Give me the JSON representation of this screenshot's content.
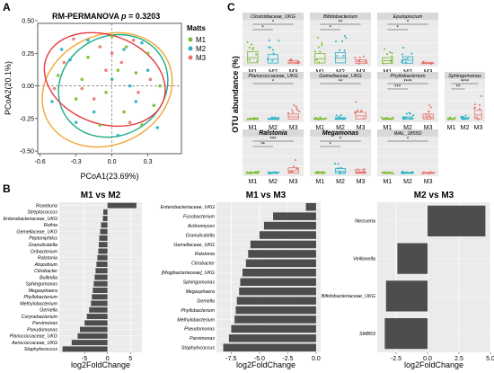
{
  "panel_labels": {
    "a": "A",
    "b": "B",
    "c": "C"
  },
  "colors": {
    "M1": "#7dbb2e",
    "M2": "#27b1c4",
    "M3": "#e8736b",
    "bar": "#4d4d4d",
    "panel_bg": "#ebebeb",
    "strip_bg": "#d9d9d9",
    "ell_M1": "#1aaa85",
    "ell_M2": "#f2a531",
    "ell_M3": "#e8383d"
  },
  "chart_data": [
    {
      "id": "A",
      "type": "scatter",
      "title": "RM-PERMANOVA p = 0.3203",
      "title_prefix": "RM-PERMANOVA ",
      "title_italic": "p",
      "title_suffix": " = 0.3203",
      "xlabel": "PCoA1(23.69%)",
      "ylabel": "PCoA2(20.1%)",
      "xlim": [
        -0.62,
        0.58
      ],
      "ylim": [
        -0.52,
        0.48
      ],
      "xticks": [
        -0.6,
        -0.3,
        0.0,
        0.3
      ],
      "xtick_labels": [
        "-0.6",
        "-0.3",
        "0.0",
        "0.3"
      ],
      "yticks": [
        0.5,
        0.25,
        0.0,
        -0.25,
        -0.5
      ],
      "ytick_labels": [
        "0.50",
        "0.25",
        "0.00",
        "-0.25",
        "-0.50"
      ],
      "legend_title": "Matts",
      "legend_position": "right",
      "series": [
        {
          "name": "M1",
          "points": [
            [
              -0.45,
              0.08
            ],
            [
              -0.3,
              -0.1
            ],
            [
              -0.2,
              0.22
            ],
            [
              -0.05,
              -0.05
            ],
            [
              0.05,
              0.12
            ],
            [
              0.1,
              -0.2
            ],
            [
              0.2,
              0.1
            ],
            [
              0.25,
              -0.3
            ],
            [
              0.3,
              0.25
            ],
            [
              0.4,
              0.0
            ],
            [
              0.12,
              0.3
            ],
            [
              -0.1,
              -0.3
            ],
            [
              0.35,
              -0.15
            ],
            [
              0.0,
              0.38
            ],
            [
              -0.25,
              0.05
            ]
          ]
        },
        {
          "name": "M2",
          "points": [
            [
              -0.5,
              -0.12
            ],
            [
              -0.35,
              0.2
            ],
            [
              -0.15,
              -0.2
            ],
            [
              0.0,
              0.05
            ],
            [
              0.1,
              0.28
            ],
            [
              0.2,
              -0.12
            ],
            [
              0.3,
              0.12
            ],
            [
              -0.42,
              0.28
            ],
            [
              0.38,
              -0.32
            ],
            [
              0.05,
              -0.38
            ],
            [
              -0.2,
              0.35
            ],
            [
              0.25,
              0.33
            ],
            [
              -0.3,
              -0.28
            ],
            [
              0.15,
              0.0
            ]
          ]
        },
        {
          "name": "M3",
          "points": [
            [
              -0.4,
              0.18
            ],
            [
              -0.25,
              -0.02
            ],
            [
              -0.1,
              0.3
            ],
            [
              0.08,
              0.18
            ],
            [
              0.22,
              -0.05
            ],
            [
              -0.32,
              0.36
            ],
            [
              -0.05,
              0.12
            ],
            [
              0.15,
              -0.28
            ],
            [
              0.32,
              0.05
            ],
            [
              -0.15,
              -0.1
            ],
            [
              0.0,
              0.25
            ],
            [
              0.18,
              0.35
            ],
            [
              -0.48,
              -0.02
            ]
          ]
        }
      ],
      "ellipses": [
        {
          "series": "M1",
          "cx": 0.01,
          "cy": 0.0,
          "rx": 0.47,
          "ry": 0.38,
          "angle_deg": -30
        },
        {
          "series": "M2",
          "cx": -0.04,
          "cy": -0.03,
          "rx": 0.56,
          "ry": 0.42,
          "angle_deg": -25
        },
        {
          "series": "M3",
          "cx": -0.06,
          "cy": 0.05,
          "rx": 0.52,
          "ry": 0.34,
          "angle_deg": 20
        }
      ]
    },
    {
      "id": "B1",
      "type": "bar",
      "orientation": "horizontal",
      "title": "M1 vs M2",
      "xlabel": "log2FoldChange",
      "xlim": [
        -10.5,
        7.5
      ],
      "xticks": [
        -5,
        0,
        5
      ],
      "categories": [
        "Roseburia",
        "Streptococcus",
        "Enterobacteriaceae_UKG",
        "Rothia",
        "Gemellaceae_UKG",
        "Peptoniphilus",
        "Granulicatella",
        "Oribacterium",
        "Ralstonia",
        "Atopobium",
        "Citrobacter",
        "Bulleidia",
        "Sphingomonas",
        "Megasphaera",
        "Phyllobacterium",
        "Methylobacterium",
        "Gemella",
        "Corynebacterium",
        "Parvimonas",
        "Pseudomonas",
        "Planococcaceae_UKG",
        "Aerococcaceae_UKG",
        "Staphylococcus"
      ],
      "values": [
        6.3,
        -0.9,
        -1.0,
        -1.4,
        -1.6,
        -1.8,
        -1.9,
        -2.0,
        -2.2,
        -2.4,
        -2.6,
        -2.8,
        -3.0,
        -3.2,
        -3.4,
        -3.6,
        -4.0,
        -4.5,
        -5.0,
        -6.0,
        -6.5,
        -7.8,
        -9.8
      ]
    },
    {
      "id": "B2",
      "type": "bar",
      "orientation": "horizontal",
      "title": "M1 vs M3",
      "xlabel": "log2FoldChange",
      "xlim": [
        -8.8,
        0.4
      ],
      "xticks": [
        -7.5,
        -5.0,
        -2.5,
        0.0
      ],
      "xtick_labels": [
        "-7.5",
        "-5.0",
        "-2.5",
        "0.0"
      ],
      "categories": [
        "Enterobacteriaceae_UKG",
        "Fusobacterium",
        "Actinomyces",
        "Granulicatella",
        "Gemellaceae_UKG",
        "Ralstonia",
        "Citrobacter",
        "[Mogibacteriaceae]_UKG",
        "Sphingomonas",
        "Megasphaera",
        "Gemella",
        "Phyllobacterium",
        "Methylobacterium",
        "Pseudomonas",
        "Parvimonas",
        "Staphylococcus"
      ],
      "values": [
        -0.9,
        -3.8,
        -4.6,
        -5.0,
        -5.8,
        -6.0,
        -6.2,
        -6.5,
        -6.7,
        -6.8,
        -7.0,
        -7.1,
        -7.2,
        -7.5,
        -7.7,
        -8.2
      ]
    },
    {
      "id": "B3",
      "type": "bar",
      "orientation": "horizontal",
      "title": "M2 vs M3",
      "xlabel": "log2FoldChange",
      "xlim": [
        -4.0,
        5.0
      ],
      "xticks": [
        -2.5,
        0.0,
        2.5,
        5.0
      ],
      "xtick_labels": [
        "-2.5",
        "0.0",
        "2.5",
        "5.0"
      ],
      "categories": [
        "Neisseria",
        "Veillonella",
        "Bifidobacteriaceae_UKG",
        "SMB53"
      ],
      "values": [
        4.6,
        -2.4,
        -3.3,
        -3.4
      ]
    },
    {
      "id": "C",
      "type": "box",
      "ylabel": "OTU abundance (%)",
      "groups": [
        "M1",
        "M2",
        "M3"
      ],
      "facets": [
        {
          "taxon": "Clostridiaceae_UKG",
          "sig": [
            "*",
            "*"
          ],
          "means": [
            0.6,
            0.45,
            0.15
          ]
        },
        {
          "taxon": "Bifidobacterium",
          "sig": [
            "**",
            "*"
          ],
          "means": [
            0.5,
            0.55,
            0.2
          ]
        },
        {
          "taxon": "Epulopiscium",
          "sig": [
            "*",
            "*"
          ],
          "means": [
            0.3,
            0.35,
            0.05
          ]
        },
        {
          "taxon": "Planococcaceae_UKG",
          "sig": [
            "*"
          ],
          "means": [
            0.05,
            0.05,
            0.3
          ]
        },
        {
          "taxon": "Gemellaceae_UKG",
          "sig": [
            "**"
          ],
          "means": [
            0.05,
            0.1,
            0.4
          ]
        },
        {
          "taxon": "Phyllobacterium",
          "sig": [
            "****",
            "***"
          ],
          "means": [
            0.05,
            0.15,
            0.3
          ]
        },
        {
          "taxon": "Sphingomonas",
          "sig": [
            "****",
            "**"
          ],
          "means": [
            0.05,
            0.1,
            0.5
          ]
        },
        {
          "taxon": "Ralstonia",
          "sig": [
            "***",
            "**"
          ],
          "means": [
            0.05,
            0.05,
            0.35
          ]
        },
        {
          "taxon": "Megamonas",
          "sig": [
            "*",
            "*"
          ],
          "means": [
            0.05,
            0.3,
            0.1
          ]
        },
        {
          "taxon": "WAL_1855D",
          "sig": [
            "*"
          ],
          "means": [
            0.05,
            0.05,
            0.05
          ]
        }
      ]
    }
  ]
}
